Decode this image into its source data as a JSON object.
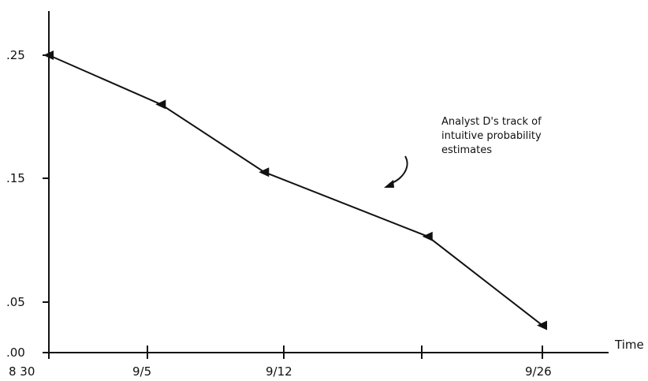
{
  "chart_data": {
    "type": "line",
    "title": "",
    "xlabel": "Time",
    "ylabel": "",
    "x_tick_labels": [
      "8 30",
      "9/5",
      "9/12",
      "",
      "9/26"
    ],
    "y_tick_labels": [
      ".00",
      ".05",
      ".15",
      ".25"
    ],
    "y_tick_values": [
      0.0,
      0.05,
      0.15,
      0.25
    ],
    "ylim": [
      0.0,
      0.25
    ],
    "grid": false,
    "series": [
      {
        "x": [
          0,
          6.7,
          12.0,
          20.8,
          27.0
        ],
        "y": [
          0.25,
          0.21,
          0.155,
          0.103,
          0.027
        ]
      }
    ],
    "annotation": {
      "lines": [
        "Analyst D's track of",
        "intuitive probability",
        "estimates"
      ]
    }
  }
}
